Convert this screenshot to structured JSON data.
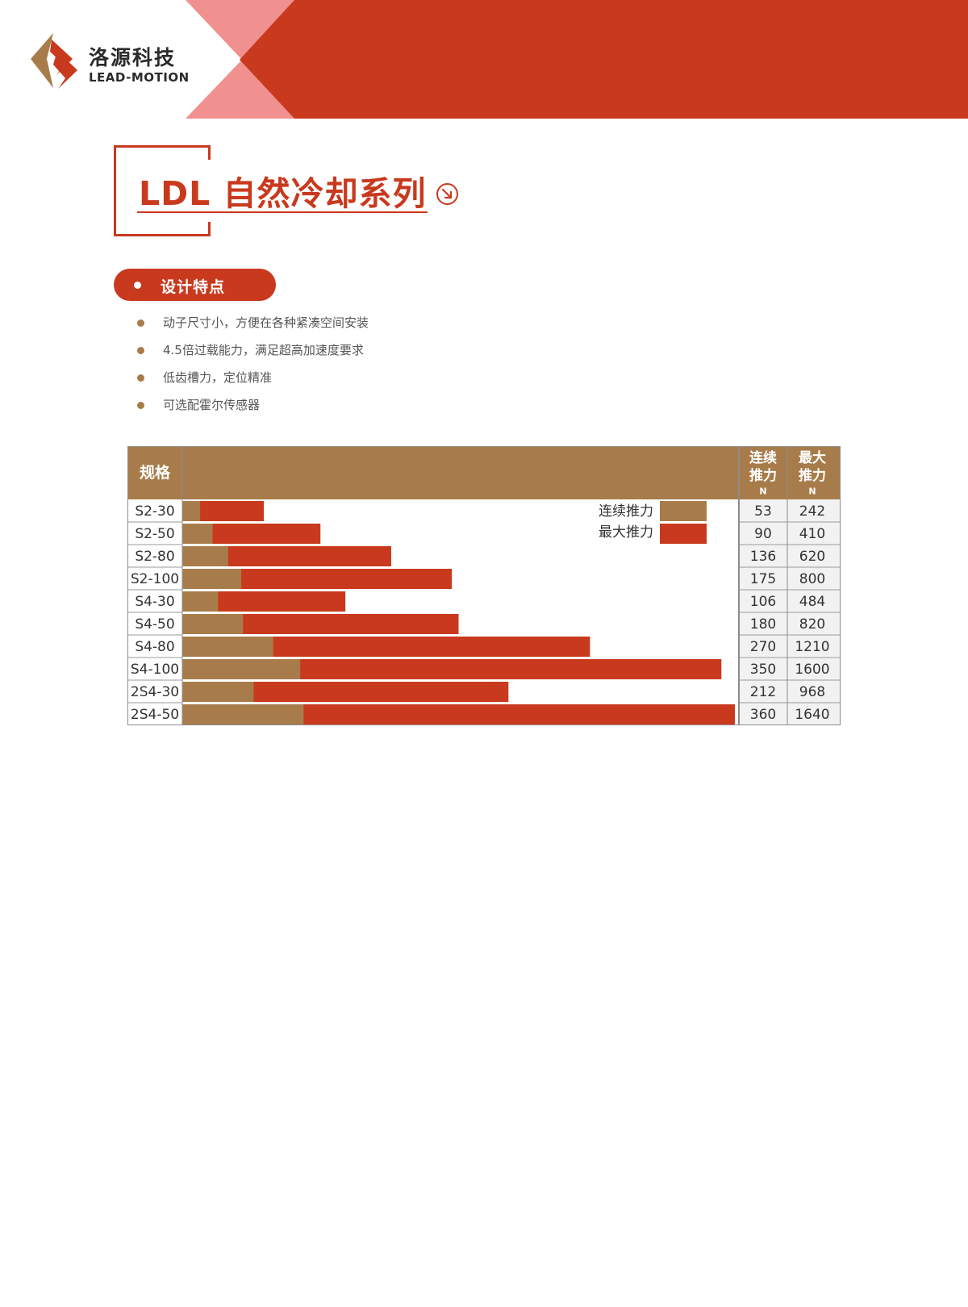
{
  "brand": {
    "name_cn": "洛源科技",
    "name_en": "LEAD-MOTION",
    "colors": {
      "primary": "#c9391e",
      "pink": "#f0918f",
      "gold": "#a87c4a"
    }
  },
  "series_title": "LDL 自然冷却系列",
  "section": {
    "title": "设计特点",
    "features": [
      "动子尺寸小，方便在各种紧凑空间安装",
      "4.5倍过载能力，满足超高加速度要求",
      "低齿槽力，定位精准",
      "可选配霍尔传感器"
    ]
  },
  "chart_data": {
    "type": "bar",
    "orientation": "horizontal",
    "stacked_overlap": true,
    "header": {
      "spec": "规格",
      "cont_lines": [
        "连续",
        "推力"
      ],
      "max_lines": [
        "最大",
        "推力"
      ],
      "unit": "N"
    },
    "categories": [
      "S2-30",
      "S2-50",
      "S2-80",
      "S2-100",
      "S4-30",
      "S4-50",
      "S4-80",
      "S4-100",
      "2S4-30",
      "2S4-50"
    ],
    "series": [
      {
        "name": "连续推力",
        "color": "#a87c4a",
        "values": [
          53,
          90,
          136,
          175,
          106,
          180,
          270,
          350,
          212,
          360
        ]
      },
      {
        "name": "最大推力",
        "color": "#c9391e",
        "values": [
          242,
          410,
          620,
          800,
          484,
          820,
          1210,
          1600,
          968,
          1640
        ]
      }
    ],
    "legend_position": "top-right",
    "xlim": [
      0,
      1640
    ]
  }
}
